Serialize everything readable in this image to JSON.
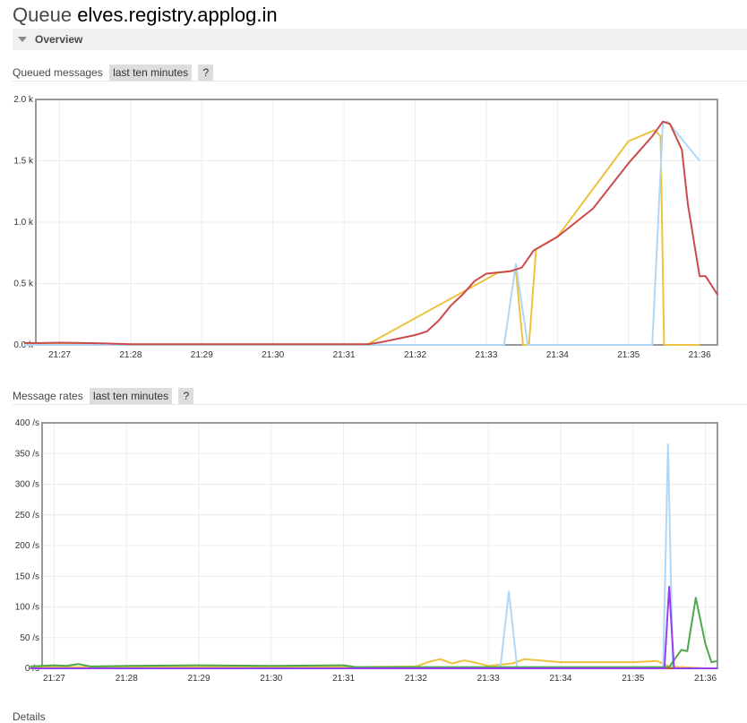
{
  "header": {
    "prefix": "Queue",
    "name": "elves.registry.applog.in"
  },
  "overview": {
    "label": "Overview"
  },
  "queued": {
    "label": "Queued messages",
    "range": "last ten minutes",
    "help": "?",
    "chart_data": {
      "type": "line",
      "title": "",
      "ylim": [
        0,
        2000
      ],
      "y_ticks": [
        "0.0 k",
        "0.5 k",
        "1.0 k",
        "1.5 k",
        "2.0 k"
      ],
      "x_ticks": [
        "21:27",
        "21:28",
        "21:29",
        "21:30",
        "21:31",
        "21:32",
        "21:33",
        "21:34",
        "21:35",
        "21:36"
      ],
      "grid": true,
      "series": [
        {
          "color": "#edc240",
          "points": [
            [
              "21:26:30",
              10
            ],
            [
              "21:27",
              10
            ],
            [
              "21:28",
              5
            ],
            [
              "21:31",
              5
            ],
            [
              "21:31:20",
              5
            ],
            [
              "21:33:10",
              590
            ],
            [
              "21:33:25",
              605
            ],
            [
              "21:33:31",
              0
            ],
            [
              "21:33:36",
              0
            ],
            [
              "21:33:42",
              780
            ],
            [
              "21:34",
              880
            ],
            [
              "21:35",
              1660
            ],
            [
              "21:35:22",
              1750
            ],
            [
              "21:35:27",
              1700
            ],
            [
              "21:35:30",
              0
            ],
            [
              "21:36",
              0
            ]
          ]
        },
        {
          "color": "#afd8f8",
          "points": [
            [
              "21:26:30",
              0
            ],
            [
              "21:31:20",
              0
            ],
            [
              "21:33:15",
              0
            ],
            [
              "21:33:25",
              660
            ],
            [
              "21:33:35",
              0
            ],
            [
              "21:35:20",
              0
            ],
            [
              "21:35:29",
              1810
            ],
            [
              "21:35:33",
              1820
            ],
            [
              "21:36",
              1500
            ]
          ]
        },
        {
          "color": "#cb4b4b",
          "points": [
            [
              "21:26:30",
              15
            ],
            [
              "21:26:45",
              15
            ],
            [
              "21:27",
              18
            ],
            [
              "21:27:20",
              15
            ],
            [
              "21:27:40",
              12
            ],
            [
              "21:28",
              5
            ],
            [
              "21:31",
              5
            ],
            [
              "21:31:20",
              5
            ],
            [
              "21:31:30",
              20
            ],
            [
              "21:32",
              80
            ],
            [
              "21:32:10",
              110
            ],
            [
              "21:32:20",
              200
            ],
            [
              "21:32:30",
              320
            ],
            [
              "21:32:40",
              410
            ],
            [
              "21:32:50",
              520
            ],
            [
              "21:33",
              580
            ],
            [
              "21:33:20",
              600
            ],
            [
              "21:33:30",
              630
            ],
            [
              "21:33:40",
              770
            ],
            [
              "21:34",
              880
            ],
            [
              "21:34:30",
              1110
            ],
            [
              "21:35",
              1480
            ],
            [
              "21:35:20",
              1700
            ],
            [
              "21:35:29",
              1820
            ],
            [
              "21:35:35",
              1800
            ],
            [
              "21:35:45",
              1590
            ],
            [
              "21:35:50",
              1150
            ],
            [
              "21:36",
              560
            ],
            [
              "21:36:05",
              560
            ],
            [
              "21:36:15",
              410
            ]
          ]
        }
      ]
    }
  },
  "rates": {
    "label": "Message rates",
    "range": "last ten minutes",
    "help": "?",
    "chart_data": {
      "type": "line",
      "title": "",
      "ylim": [
        0,
        400
      ],
      "y_ticks": [
        "0 /s",
        "50 /s",
        "100 /s",
        "150 /s",
        "200 /s",
        "250 /s",
        "300 /s",
        "350 /s",
        "400 /s"
      ],
      "x_ticks": [
        "21:27",
        "21:28",
        "21:29",
        "21:30",
        "21:31",
        "21:32",
        "21:33",
        "21:34",
        "21:35",
        "21:36"
      ],
      "grid": true,
      "series": [
        {
          "color": "#edc240",
          "points": [
            [
              "21:26:40",
              2
            ],
            [
              "21:31:10",
              2
            ],
            [
              "21:32",
              3
            ],
            [
              "21:32:10",
              10
            ],
            [
              "21:32:20",
              15
            ],
            [
              "21:32:30",
              8
            ],
            [
              "21:32:40",
              13
            ],
            [
              "21:32:50",
              9
            ],
            [
              "21:33",
              4
            ],
            [
              "21:33:20",
              8
            ],
            [
              "21:33:30",
              15
            ],
            [
              "21:34",
              10
            ],
            [
              "21:35",
              10
            ],
            [
              "21:35:20",
              12
            ],
            [
              "21:35:30",
              3
            ],
            [
              "21:36",
              0
            ]
          ]
        },
        {
          "color": "#afd8f8",
          "points": [
            [
              "21:26:40",
              0
            ],
            [
              "21:33:10",
              0
            ],
            [
              "21:33:17",
              125
            ],
            [
              "21:33:24",
              0
            ],
            [
              "21:35:25",
              0
            ],
            [
              "21:35:29",
              365
            ],
            [
              "21:35:33",
              0
            ],
            [
              "21:36",
              0
            ]
          ]
        },
        {
          "color": "#cb4b4b",
          "points": [
            [
              "21:26:40",
              0
            ],
            [
              "21:36:10",
              0
            ]
          ]
        },
        {
          "color": "#4da74d",
          "points": [
            [
              "21:26:40",
              3
            ],
            [
              "21:27",
              5
            ],
            [
              "21:27:10",
              4
            ],
            [
              "21:27:20",
              7
            ],
            [
              "21:27:30",
              3
            ],
            [
              "21:28",
              4
            ],
            [
              "21:29",
              5
            ],
            [
              "21:30",
              4
            ],
            [
              "21:31",
              5
            ],
            [
              "21:31:10",
              2
            ],
            [
              "21:35:30",
              2
            ],
            [
              "21:35:40",
              30
            ],
            [
              "21:35:45",
              28
            ],
            [
              "21:35:52",
              115
            ],
            [
              "21:36",
              40
            ],
            [
              "21:36:05",
              10
            ],
            [
              "21:36:10",
              12
            ]
          ]
        },
        {
          "color": "#9440ed",
          "points": [
            [
              "21:26:40",
              0
            ],
            [
              "21:35:26",
              0
            ],
            [
              "21:35:30",
              133
            ],
            [
              "21:35:34",
              0
            ],
            [
              "21:36:10",
              0
            ]
          ]
        }
      ]
    }
  },
  "footer": {
    "details": "Details"
  }
}
